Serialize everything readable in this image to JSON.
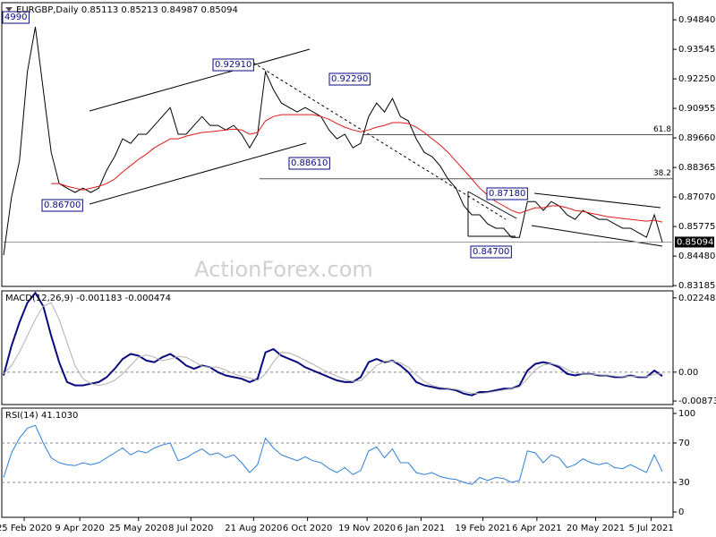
{
  "watermark": "ActionForex.com",
  "chart_data": [
    {
      "type": "line",
      "title": "EURGBP,Daily  0.85113 0.85213 0.84987 0.85094",
      "xlim": [
        0,
        83
      ],
      "ylim": [
        0.8315,
        0.9559
      ],
      "yticks": [
        {
          "value": 0.9484,
          "label": "0.94840"
        },
        0.93545,
        {
          "value": 0.9225,
          "label": "0.92250"
        },
        0.90955,
        {
          "value": 0.8966,
          "label": "0.89660"
        },
        0.88365,
        {
          "value": 0.8707,
          "label": "0.87070"
        },
        0.85775,
        {
          "value": 0.8448,
          "label": "0.84480"
        },
        0.83185
      ],
      "series": [
        {
          "name": "EURGBP",
          "color": "#000000",
          "values": [
            0.8452,
            0.8707,
            0.8864,
            0.9256,
            0.9453,
            0.9178,
            0.8903,
            0.8766,
            0.8746,
            0.8727,
            0.8746,
            0.8727,
            0.8746,
            0.8825,
            0.8884,
            0.8962,
            0.8942,
            0.8982,
            0.8982,
            0.9021,
            0.906,
            0.9099,
            0.8982,
            0.8982,
            0.9021,
            0.906,
            0.9021,
            0.9021,
            0.9001,
            0.9021,
            0.8982,
            0.8923,
            0.8982,
            0.9256,
            0.9178,
            0.9119,
            0.9099,
            0.908,
            0.9099,
            0.908,
            0.906,
            0.9001,
            0.8962,
            0.8982,
            0.8923,
            0.8942,
            0.906,
            0.9119,
            0.908,
            0.9139,
            0.906,
            0.9041,
            0.8962,
            0.8903,
            0.8884,
            0.8844,
            0.8786,
            0.8746,
            0.8668,
            0.8629,
            0.8629,
            0.8589,
            0.857,
            0.857,
            0.853,
            0.853,
            0.8687,
            0.8687,
            0.8648,
            0.8687,
            0.8668,
            0.8629,
            0.8609,
            0.8648,
            0.8629,
            0.8609,
            0.8609,
            0.8589,
            0.857,
            0.857,
            0.855,
            0.853,
            0.8629,
            0.85094
          ]
        },
        {
          "name": "MA",
          "color": "#e01818",
          "values": [
            null,
            null,
            null,
            null,
            null,
            null,
            0.8766,
            0.8766,
            0.8754,
            0.8746,
            0.8738,
            0.8746,
            0.8754,
            0.8766,
            0.8786,
            0.8817,
            0.8844,
            0.8872,
            0.8895,
            0.8923,
            0.8942,
            0.8962,
            0.8962,
            0.8974,
            0.8982,
            0.899,
            0.8993,
            0.8997,
            0.9001,
            0.9005,
            0.9001,
            0.8982,
            0.899,
            0.9041,
            0.906,
            0.9068,
            0.9068,
            0.9068,
            0.9068,
            0.9068,
            0.906,
            0.9048,
            0.9029,
            0.9013,
            0.9001,
            0.8993,
            0.9001,
            0.9013,
            0.9021,
            0.9033,
            0.9033,
            0.9029,
            0.9013,
            0.899,
            0.8962,
            0.8935,
            0.8903,
            0.8864,
            0.8825,
            0.8786,
            0.8746,
            0.8715,
            0.8688,
            0.8668,
            0.8648,
            0.8636,
            0.8648,
            0.866,
            0.866,
            0.8668,
            0.8668,
            0.866,
            0.8648,
            0.8644,
            0.8636,
            0.8629,
            0.8621,
            0.8617,
            0.8613,
            0.8609,
            0.8605,
            0.8601,
            0.8605,
            0.8597
          ]
        }
      ],
      "price_label": {
        "value": 0.85094,
        "label": "0.85094"
      },
      "levels": [
        {
          "label": "61.8",
          "value": 0.898
        },
        {
          "label": "38.2",
          "value": 0.8787
        }
      ],
      "annotations": [
        "0.92910",
        "0.92290",
        "0.88610",
        "0.86700",
        "0.87180",
        "0.84700",
        "4990"
      ]
    },
    {
      "type": "line",
      "title": "MACD(12,26,9) -0.001183 -0.000474",
      "xlim": [
        0,
        83
      ],
      "ylim": [
        -0.0098,
        0.0246
      ],
      "yticks": [
        0.022482,
        {
          "value": 0,
          "label": "0.00"
        },
        -0.008736
      ],
      "dashed_lines": [
        0
      ],
      "series": [
        {
          "name": "MACD",
          "color": "#0a0a80",
          "width": 2,
          "values": [
            -0.001,
            0.008,
            0.015,
            0.021,
            0.024,
            0.02,
            0.011,
            0.003,
            -0.003,
            -0.004,
            -0.004,
            -0.0035,
            -0.003,
            -0.0015,
            0.001,
            0.004,
            0.0055,
            0.005,
            0.0035,
            0.003,
            0.0045,
            0.0055,
            0.004,
            0.002,
            0.001,
            0.002,
            0.0015,
            0,
            -0.001,
            -0.0015,
            -0.002,
            -0.003,
            -0.002,
            0.006,
            0.007,
            0.005,
            0.004,
            0.003,
            0.0015,
            0.0005,
            -0.0005,
            -0.0015,
            -0.0025,
            -0.003,
            -0.003,
            -0.0015,
            0.003,
            0.004,
            0.003,
            0.0035,
            0.002,
            0,
            -0.003,
            -0.004,
            -0.0045,
            -0.005,
            -0.005,
            -0.0055,
            -0.0065,
            -0.007,
            -0.006,
            -0.006,
            -0.0055,
            -0.005,
            -0.005,
            -0.004,
            0.0005,
            0.0025,
            0.003,
            0.0025,
            0.0015,
            -0.0005,
            -0.001,
            -0.0005,
            -0.0005,
            -0.001,
            -0.001,
            -0.0015,
            -0.0015,
            -0.001,
            -0.0015,
            -0.0015,
            0.0005,
            -0.001183
          ]
        },
        {
          "name": "Signal",
          "color": "#b0b0b0",
          "width": 1,
          "values": [
            -0.0005,
            0.002,
            0.006,
            0.011,
            0.016,
            0.02,
            0.021,
            0.016,
            0.009,
            0.002,
            -0.002,
            -0.0035,
            -0.004,
            -0.0035,
            -0.0025,
            -0.0005,
            0.002,
            0.0045,
            0.0052,
            0.0045,
            0.0035,
            0.004,
            0.0048,
            0.0045,
            0.0032,
            0.0018,
            0.0015,
            0.0015,
            0.0006,
            -0.0005,
            -0.0012,
            -0.0018,
            -0.0025,
            -0.0005,
            0.003,
            0.006,
            0.0058,
            0.0048,
            0.0036,
            0.0024,
            0.001,
            -0.0002,
            -0.0012,
            -0.0022,
            -0.0028,
            -0.0026,
            -0.0004,
            0.002,
            0.0033,
            0.0033,
            0.0028,
            0.0015,
            -0.0008,
            -0.0028,
            -0.004,
            -0.0046,
            -0.0049,
            -0.0052,
            -0.0058,
            -0.0064,
            -0.0065,
            -0.0062,
            -0.0058,
            -0.0054,
            -0.005,
            -0.0045,
            -0.002,
            0.0008,
            0.0022,
            0.0026,
            0.002,
            0.0008,
            -0.0002,
            -0.0006,
            -0.0006,
            -0.0008,
            -0.0009,
            -0.0012,
            -0.0014,
            -0.0012,
            -0.0013,
            -0.0014,
            -0.0006,
            -0.000474
          ]
        }
      ]
    },
    {
      "type": "line",
      "title": "RSI(14) 41.1030",
      "xlim": [
        0,
        83
      ],
      "ylim": [
        -5.4,
        105.4
      ],
      "yticks": [
        100,
        70,
        30,
        0
      ],
      "dashed_lines": [
        70,
        30
      ],
      "xticks": [
        {
          "value": 2.6,
          "label": "25 Feb 2020"
        },
        {
          "value": 9.6,
          "label": "9 Apr 2020"
        },
        {
          "value": 17.0,
          "label": "25 May 2020"
        },
        {
          "value": 23.6,
          "label": "8 Jul 2020"
        },
        {
          "value": 31.5,
          "label": "21 Aug 2020"
        },
        {
          "value": 38.3,
          "label": "6 Oct 2020"
        },
        {
          "value": 45.8,
          "label": "19 Nov 2020"
        },
        {
          "value": 52.6,
          "label": "6 Jan 2021"
        },
        {
          "value": 60.4,
          "label": "19 Feb 2021"
        },
        {
          "value": 67.2,
          "label": "6 Apr 2021"
        },
        {
          "value": 74.6,
          "label": "20 May 2021"
        },
        {
          "value": 81.6,
          "label": "5 Jul 2021"
        }
      ],
      "series": [
        {
          "name": "RSI",
          "color": "#2c7fd6",
          "width": 1,
          "values": [
            35,
            60,
            75,
            85,
            88,
            70,
            55,
            50,
            48,
            47,
            50,
            48,
            50,
            55,
            60,
            65,
            58,
            62,
            60,
            65,
            68,
            70,
            52,
            55,
            60,
            64,
            58,
            60,
            55,
            58,
            50,
            40,
            48,
            75,
            65,
            58,
            55,
            52,
            56,
            52,
            50,
            44,
            40,
            45,
            38,
            42,
            62,
            66,
            55,
            64,
            50,
            50,
            40,
            38,
            40,
            36,
            34,
            33,
            30,
            28,
            35,
            32,
            35,
            34,
            30,
            32,
            62,
            60,
            50,
            58,
            55,
            45,
            48,
            54,
            50,
            48,
            50,
            45,
            44,
            48,
            44,
            40,
            58,
            41.103
          ]
        }
      ]
    }
  ]
}
